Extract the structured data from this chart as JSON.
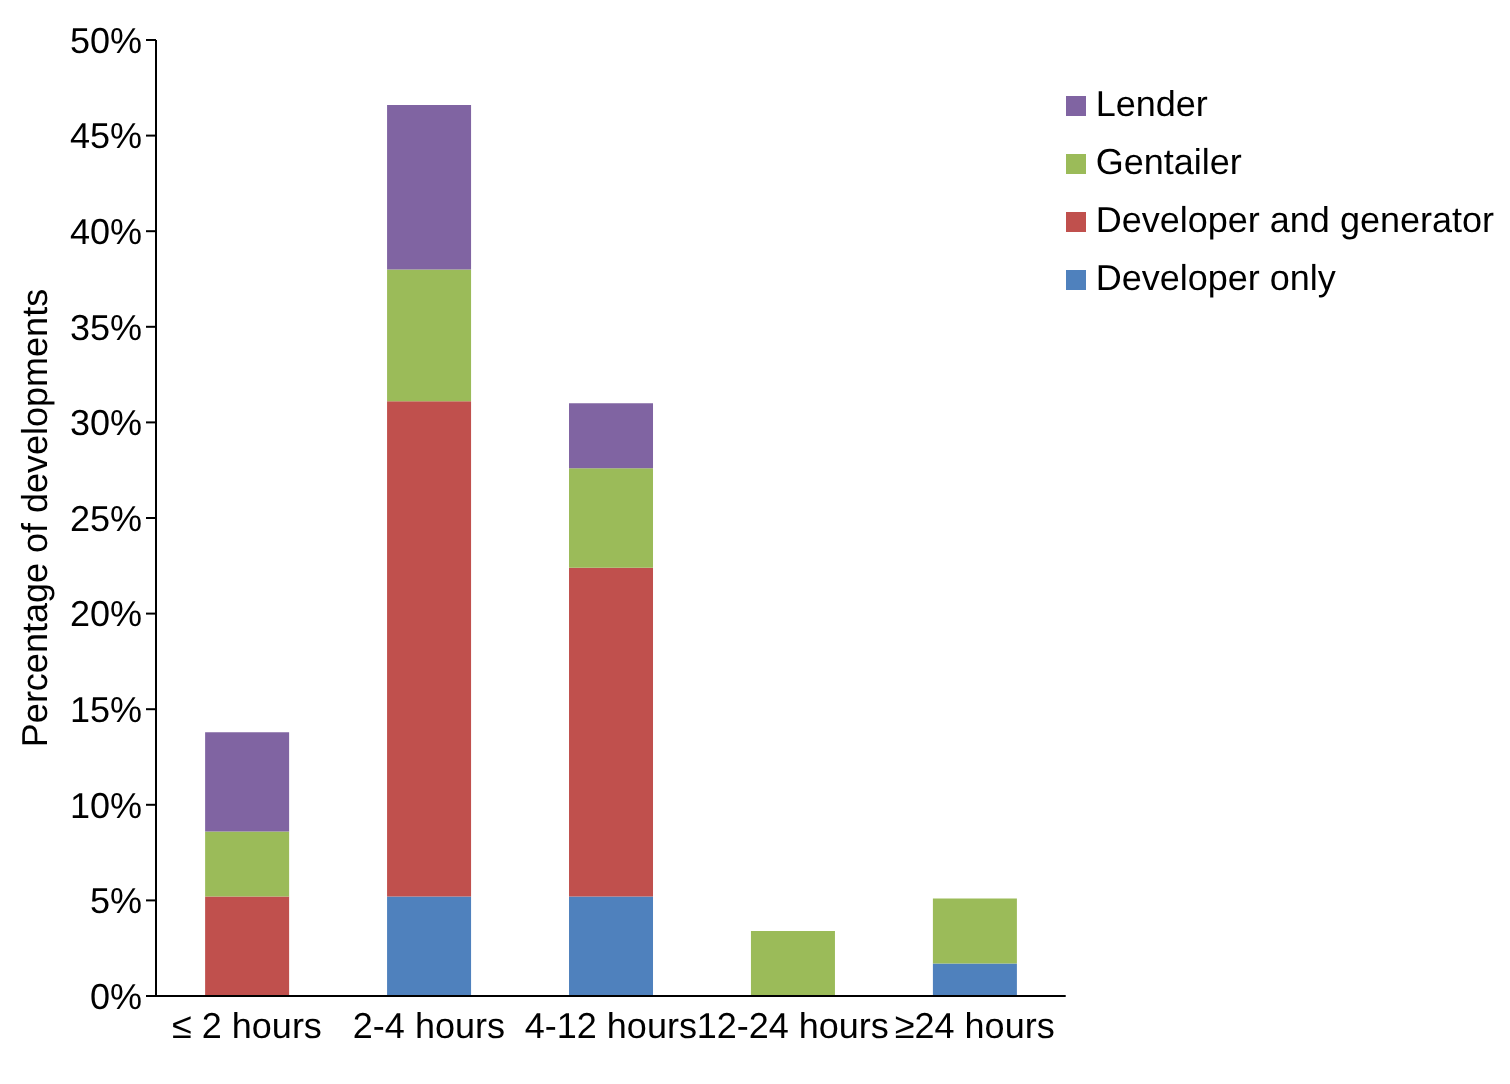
{
  "chart_data": {
    "type": "bar",
    "stacked": true,
    "ylabel": "Percentage of developments",
    "categories": [
      "≤ 2 hours",
      "2-4 hours",
      "4-12 hours",
      "12-24 hours",
      "≥24 hours"
    ],
    "series": [
      {
        "name": "Developer only",
        "color": "#4f81bd",
        "values": [
          0,
          5.2,
          5.2,
          0,
          1.7
        ]
      },
      {
        "name": "Developer and generator",
        "color": "#c0504d",
        "values": [
          5.2,
          25.9,
          17.2,
          0,
          0
        ]
      },
      {
        "name": "Gentailer",
        "color": "#9bbb59",
        "values": [
          3.4,
          6.9,
          5.2,
          3.4,
          3.4
        ]
      },
      {
        "name": "Lender",
        "color": "#8064a2",
        "values": [
          5.2,
          8.6,
          3.4,
          0,
          0
        ]
      }
    ],
    "ylim": [
      0,
      50
    ],
    "yticks": [
      {
        "value": 0,
        "label": "0%"
      },
      {
        "value": 5,
        "label": "5%"
      },
      {
        "value": 10,
        "label": "10%"
      },
      {
        "value": 15,
        "label": "15%"
      },
      {
        "value": 20,
        "label": "20%"
      },
      {
        "value": 25,
        "label": "25%"
      },
      {
        "value": 30,
        "label": "30%"
      },
      {
        "value": 35,
        "label": "35%"
      },
      {
        "value": 40,
        "label": "40%"
      },
      {
        "value": 45,
        "label": "45%"
      },
      {
        "value": 50,
        "label": "50%"
      }
    ],
    "legend": "top right",
    "grid": false
  }
}
